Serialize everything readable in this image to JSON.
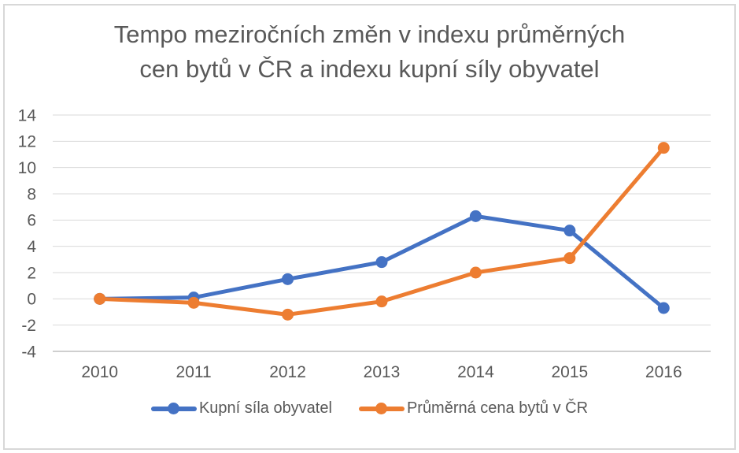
{
  "chart_data": {
    "type": "line",
    "title": "Tempo meziročních změn v indexu průměrných cen bytů v ČR a indexu kupní síly obyvatel",
    "title_lines": [
      "Tempo meziročních změn v indexu průměrných",
      "cen bytů v ČR a indexu kupní síly obyvatel"
    ],
    "categories": [
      "2010",
      "2011",
      "2012",
      "2013",
      "2014",
      "2015",
      "2016"
    ],
    "series": [
      {
        "name": "Kupní síla obyvatel",
        "color": "#4472C4",
        "values": [
          0.0,
          0.1,
          1.5,
          2.8,
          6.3,
          5.2,
          -0.7
        ]
      },
      {
        "name": "Průměrná cena bytů v ČR",
        "color": "#ED7D31",
        "values": [
          0.0,
          -0.3,
          -1.2,
          -0.2,
          2.0,
          3.1,
          11.5
        ]
      }
    ],
    "y_ticks": [
      14,
      12,
      10,
      8,
      6,
      4,
      2,
      0,
      -2,
      -4
    ],
    "ylim": [
      -4,
      14
    ],
    "xlabel": "",
    "ylabel": "",
    "grid": true,
    "legend_position": "bottom",
    "colors": {
      "grid": "#D9D9D9",
      "axis": "#BFBFBF",
      "text": "#595959",
      "border": "#D8D8D8",
      "background": "#FFFFFF"
    }
  }
}
